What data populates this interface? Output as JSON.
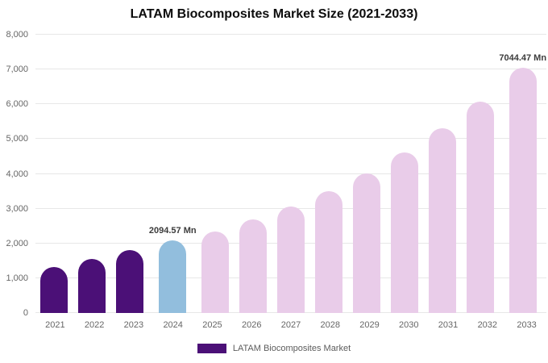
{
  "chart_data": {
    "type": "bar",
    "title": "LATAM Biocomposites Market Size (2021-2033)",
    "xlabel": "",
    "ylabel": "",
    "unit": "Mn",
    "categories": [
      "2021",
      "2022",
      "2023",
      "2024",
      "2025",
      "2026",
      "2027",
      "2028",
      "2029",
      "2030",
      "2031",
      "2032",
      "2033"
    ],
    "series": [
      {
        "name": "LATAM Biocomposites Market",
        "values": [
          1320,
          1550,
          1800,
          2094.57,
          2350,
          2680,
          3060,
          3500,
          4020,
          4620,
          5300,
          6070,
          7044.47
        ]
      }
    ],
    "ylim": [
      0,
      8000
    ],
    "ytick_step": 1000,
    "ytick_labels": [
      "0",
      "1,000",
      "2,000",
      "3,000",
      "4,000",
      "5,000",
      "6,000",
      "7,000",
      "8,000"
    ],
    "grid": true,
    "bar_labels": [
      "",
      "",
      "",
      "2094.57 Mn",
      "",
      "",
      "",
      "",
      "",
      "",
      "",
      "",
      "7044.47 Mn"
    ],
    "bar_colors": [
      "#4b1077",
      "#4b1077",
      "#4b1077",
      "#92bedd",
      "#e9cce9",
      "#e9cce9",
      "#e9cce9",
      "#e9cce9",
      "#e9cce9",
      "#e9cce9",
      "#e9cce9",
      "#e9cce9",
      "#e9cce9"
    ],
    "legend": {
      "position": "bottom",
      "label": "LATAM Biocomposites Market",
      "swatch_color": "#4b1077"
    }
  },
  "colors": {
    "dark_purple": "#4b1077",
    "highlight_blue": "#92bedd",
    "forecast_pink": "#e9cce9",
    "gridline": "#e7e7e7",
    "axis_text": "#666666",
    "title_text": "#0d0d0d",
    "background": "#ffffff"
  }
}
